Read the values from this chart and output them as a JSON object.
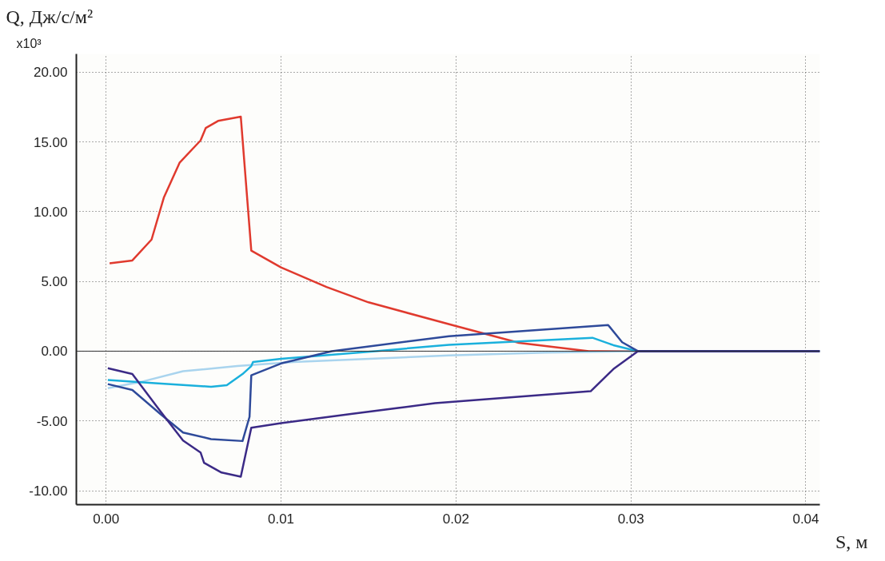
{
  "chart_data": {
    "type": "line",
    "xlabel": "S, м",
    "ylabel": "Q, Дж/с/м²",
    "annotations": [
      "x10³"
    ],
    "xlim": [
      -0.0017,
      0.0408
    ],
    "ylim": [
      -11.0,
      21.3
    ],
    "xticks": [
      {
        "value": 0,
        "label": "0.00"
      },
      {
        "value": 0.01,
        "label": "0.01"
      },
      {
        "value": 0.02,
        "label": "0.02"
      },
      {
        "value": 0.03,
        "label": "0.03"
      },
      {
        "value": 0.04,
        "label": "0.04"
      }
    ],
    "yticks": [
      {
        "value": -10,
        "label": "-10.00"
      },
      {
        "value": -5,
        "label": "-5.00"
      },
      {
        "value": 0,
        "label": "0.00"
      },
      {
        "value": 5,
        "label": "5.00"
      },
      {
        "value": 10,
        "label": "10.00"
      },
      {
        "value": 15,
        "label": "15.00"
      },
      {
        "value": 20,
        "label": "20.00"
      }
    ],
    "grid": true,
    "line_style": "solid",
    "marker": "none",
    "ref_lines": [
      {
        "axis": "y",
        "value": 0,
        "label": null,
        "color": "#333333"
      }
    ],
    "series": [
      {
        "color": "#e03a2e",
        "x": [
          0.0002,
          0.0015,
          0.0026,
          0.0033,
          0.0042,
          0.0054,
          0.0057,
          0.0064,
          0.0077,
          0.0083,
          0.01,
          0.0126,
          0.015,
          0.02,
          0.0236,
          0.0276,
          0.0304,
          0.0408
        ],
        "values": [
          6.3,
          6.5,
          8.0,
          11.0,
          13.5,
          15.1,
          16.0,
          16.5,
          16.8,
          7.2,
          6.0,
          4.6,
          3.5,
          1.8,
          0.6,
          0.0,
          0.0,
          0.0
        ]
      },
      {
        "color": "#a9d4ee",
        "x": [
          0.0001,
          0.002,
          0.0044,
          0.0075,
          0.0107,
          0.0196,
          0.0251,
          0.0304,
          0.0408
        ],
        "values": [
          -2.65,
          -2.2,
          -1.44,
          -1.07,
          -0.78,
          -0.31,
          -0.1,
          0.0,
          0.0
        ]
      },
      {
        "color": "#1ab0dc",
        "x": [
          0.0001,
          0.0028,
          0.006,
          0.0069,
          0.0078,
          0.0083,
          0.0084,
          0.01,
          0.0154,
          0.0196,
          0.0278,
          0.029,
          0.0304,
          0.0408
        ],
        "values": [
          -2.06,
          -2.3,
          -2.55,
          -2.44,
          -1.64,
          -1.07,
          -0.78,
          -0.55,
          0.0,
          0.46,
          0.96,
          0.43,
          0.0,
          0.0
        ]
      },
      {
        "color": "#2e4a9a",
        "x": [
          0.0001,
          0.0015,
          0.0031,
          0.0044,
          0.006,
          0.0078,
          0.0082,
          0.0083,
          0.01,
          0.0129,
          0.0196,
          0.0287,
          0.0295,
          0.0304,
          0.0408
        ],
        "values": [
          -2.36,
          -2.78,
          -4.5,
          -5.83,
          -6.3,
          -6.44,
          -4.7,
          -1.73,
          -0.88,
          0.0,
          1.07,
          1.87,
          0.64,
          0.0,
          0.0
        ]
      },
      {
        "color": "#3b2a86",
        "x": [
          0.0001,
          0.0015,
          0.0031,
          0.0044,
          0.0054,
          0.0056,
          0.0066,
          0.0077,
          0.0083,
          0.01,
          0.014,
          0.0188,
          0.0277,
          0.029,
          0.0304,
          0.0408
        ],
        "values": [
          -1.22,
          -1.64,
          -4.3,
          -6.4,
          -7.26,
          -8.0,
          -8.7,
          -9.0,
          -5.49,
          -5.16,
          -4.5,
          -3.73,
          -2.87,
          -1.28,
          0.0,
          0.0
        ]
      }
    ]
  }
}
